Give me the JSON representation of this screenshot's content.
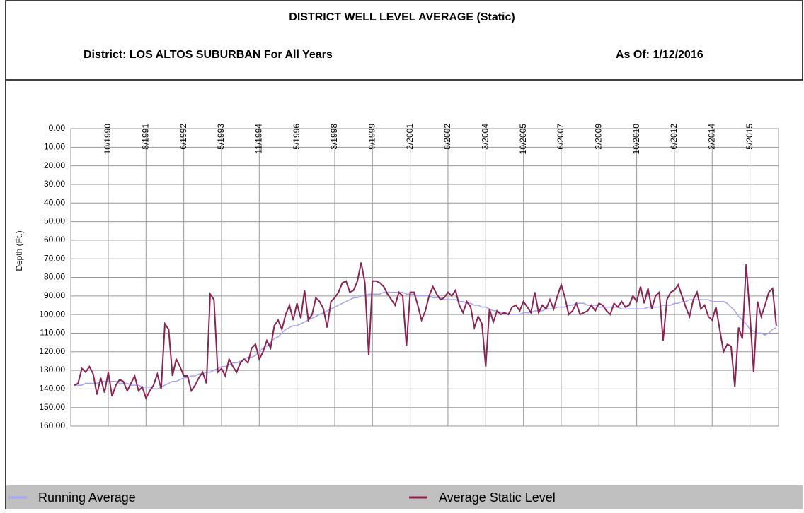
{
  "chart_data": {
    "type": "line",
    "title": "DISTRICT WELL LEVEL AVERAGE (Static)",
    "subtitle": "District: LOS ALTOS SUBURBAN For All Years",
    "as_of": "As Of: 1/12/2016",
    "y_label": "Depth (Ft.)",
    "ylim": [
      0,
      160
    ],
    "y_reversed": true,
    "grid": true,
    "yticks": [
      {
        "value": 0,
        "label": "0.00"
      },
      {
        "value": 10,
        "label": "10.00"
      },
      {
        "value": 20,
        "label": "20.00"
      },
      {
        "value": 30,
        "label": "30.00"
      },
      {
        "value": 40,
        "label": "40.00"
      },
      {
        "value": 50,
        "label": "50.00"
      },
      {
        "value": 60,
        "label": "60.00"
      },
      {
        "value": 70,
        "label": "70.00"
      },
      {
        "value": 80,
        "label": "80.00"
      },
      {
        "value": 90,
        "label": "90.00"
      },
      {
        "value": 100,
        "label": "100.00"
      },
      {
        "value": 110,
        "label": "110.00"
      },
      {
        "value": 120,
        "label": "120.00"
      },
      {
        "value": 130,
        "label": "130.00"
      },
      {
        "value": 140,
        "label": "140.00"
      },
      {
        "value": 150,
        "label": "150.00"
      },
      {
        "value": 160,
        "label": "160.00"
      }
    ],
    "categories": [
      null,
      null,
      null,
      null,
      null,
      null,
      null,
      null,
      null,
      "10/1990",
      null,
      null,
      null,
      null,
      null,
      null,
      null,
      null,
      null,
      "8/1991",
      null,
      null,
      null,
      null,
      null,
      null,
      null,
      null,
      null,
      "6/1992",
      null,
      null,
      null,
      null,
      null,
      null,
      null,
      null,
      null,
      "5/1993",
      null,
      null,
      null,
      null,
      null,
      null,
      null,
      null,
      null,
      "11/1994",
      null,
      null,
      null,
      null,
      null,
      null,
      null,
      null,
      null,
      "5/1996",
      null,
      null,
      null,
      null,
      null,
      null,
      null,
      null,
      null,
      "3/1998",
      null,
      null,
      null,
      null,
      null,
      null,
      null,
      null,
      null,
      "9/1999",
      null,
      null,
      null,
      null,
      null,
      null,
      null,
      null,
      null,
      "2/2001",
      null,
      null,
      null,
      null,
      null,
      null,
      null,
      null,
      null,
      "8/2002",
      null,
      null,
      null,
      null,
      null,
      null,
      null,
      null,
      null,
      "3/2004",
      null,
      null,
      null,
      null,
      null,
      null,
      null,
      null,
      null,
      "10/2005",
      null,
      null,
      null,
      null,
      null,
      null,
      null,
      null,
      null,
      "6/2007",
      null,
      null,
      null,
      null,
      null,
      null,
      null,
      null,
      null,
      "2/2009",
      null,
      null,
      null,
      null,
      null,
      null,
      null,
      null,
      null,
      "10/2010",
      null,
      null,
      null,
      null,
      null,
      null,
      null,
      null,
      null,
      "6/2012",
      null,
      null,
      null,
      null,
      null,
      null,
      null,
      null,
      null,
      "2/2014",
      null,
      null,
      null,
      null,
      null,
      null,
      null,
      null,
      null,
      "5/2015",
      null,
      null,
      null,
      null,
      null,
      null,
      null
    ],
    "series": [
      {
        "name": "Running Average",
        "color": "#a4a4f4",
        "values": [
          138,
          138,
          138,
          137,
          137,
          137,
          137,
          136,
          136,
          136,
          136,
          136,
          137,
          137,
          137,
          138,
          138,
          138,
          139,
          139,
          139,
          140,
          140,
          139,
          138,
          137,
          136,
          136,
          135,
          134,
          134,
          133,
          133,
          132,
          132,
          131,
          131,
          130,
          129,
          128,
          128,
          127,
          126,
          126,
          125,
          124,
          123,
          123,
          122,
          120,
          118,
          117,
          115,
          113,
          112,
          110,
          108,
          107,
          106,
          106,
          105,
          104,
          103,
          102,
          101,
          100,
          99,
          98,
          97,
          96,
          95,
          94,
          93,
          92,
          91,
          91,
          90,
          90,
          89,
          89,
          89,
          89,
          88,
          88,
          88,
          88,
          88,
          88,
          89,
          89,
          89,
          90,
          90,
          90,
          90,
          91,
          91,
          91,
          92,
          92,
          92,
          92,
          93,
          93,
          94,
          94,
          95,
          95,
          96,
          96,
          97,
          98,
          98,
          99,
          99,
          100,
          100,
          100,
          100,
          99,
          99,
          99,
          98,
          98,
          98,
          97,
          97,
          97,
          96,
          96,
          96,
          95,
          95,
          94,
          94,
          94,
          95,
          95,
          95,
          96,
          96,
          96,
          96,
          96,
          96,
          97,
          97,
          97,
          97,
          97,
          97,
          97,
          96,
          96,
          96,
          96,
          95,
          95,
          95,
          94,
          94,
          93,
          93,
          92,
          92,
          92,
          92,
          92,
          92,
          93,
          93,
          93,
          93,
          94,
          96,
          98,
          101,
          103,
          105,
          108,
          109,
          110,
          110,
          111,
          110,
          108,
          107
        ]
      },
      {
        "name": "Average Static Level",
        "color": "#8b2352",
        "values": [
          138,
          137,
          129,
          131,
          128,
          132,
          143,
          134,
          142,
          131,
          144,
          138,
          135,
          136,
          141,
          137,
          133,
          141,
          139,
          145,
          141,
          138,
          132,
          140,
          105,
          108,
          133,
          124,
          128,
          133,
          133,
          141,
          138,
          134,
          131,
          137,
          89,
          92,
          131,
          129,
          133,
          124,
          128,
          131,
          126,
          124,
          126,
          118,
          116,
          124,
          120,
          114,
          118,
          106,
          103,
          108,
          100,
          95,
          103,
          94,
          102,
          87,
          103,
          100,
          91,
          93,
          97,
          107,
          93,
          91,
          88,
          83,
          82,
          88,
          87,
          82,
          72,
          83,
          122,
          82,
          82,
          83,
          85,
          89,
          92,
          95,
          88,
          90,
          117,
          88,
          88,
          95,
          103,
          98,
          90,
          85,
          89,
          92,
          91,
          88,
          90,
          87,
          95,
          99,
          93,
          96,
          107,
          101,
          105,
          128,
          97,
          104,
          98,
          100,
          99,
          100,
          96,
          95,
          98,
          93,
          96,
          99,
          88,
          99,
          95,
          97,
          92,
          97,
          90,
          84,
          91,
          100,
          98,
          94,
          100,
          99,
          98,
          95,
          98,
          94,
          95,
          98,
          100,
          94,
          96,
          93,
          96,
          95,
          90,
          93,
          85,
          94,
          86,
          97,
          90,
          88,
          114,
          92,
          88,
          87,
          84,
          90,
          96,
          101,
          92,
          88,
          97,
          95,
          101,
          103,
          96,
          108,
          120,
          116,
          117,
          139,
          107,
          113,
          73,
          100,
          131,
          93,
          101,
          95,
          88,
          86,
          106
        ]
      }
    ]
  }
}
